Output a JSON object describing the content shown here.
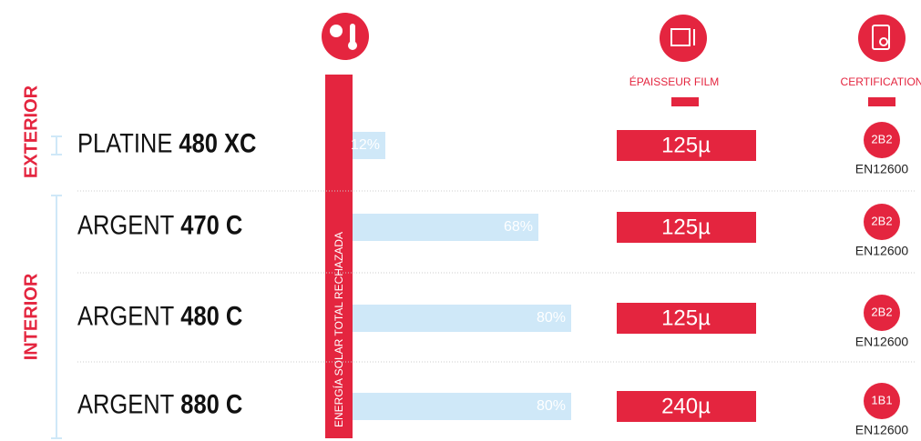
{
  "chart_data": {
    "type": "bar",
    "title": "ENERGÍA SOLAR TOTAL RECHAZADA",
    "groups": [
      {
        "name": "EXTERIOR",
        "rows": [
          0
        ]
      },
      {
        "name": "INTERIOR",
        "rows": [
          1,
          2,
          3
        ]
      }
    ],
    "products": [
      {
        "line": "PLATINE",
        "model": "480 XC"
      },
      {
        "line": "ARGENT",
        "model": "470 C"
      },
      {
        "line": "ARGENT",
        "model": "480 C"
      },
      {
        "line": "ARGENT",
        "model": "880 C"
      }
    ],
    "values": [
      12,
      68,
      80,
      80
    ],
    "value_labels": [
      "12%",
      "68%",
      "80%",
      "80%"
    ],
    "color": "#cfe8f8",
    "xlim": [
      0,
      100
    ],
    "thickness_header": "ÉPAISSEUR FILM",
    "thickness_labels": [
      "125µ",
      "125µ",
      "125µ",
      "240µ"
    ],
    "certification_header": "CERTIFICATION",
    "certifications": [
      "2B2",
      "2B2",
      "2B2",
      "1B1"
    ],
    "standards": [
      "EN12600",
      "EN12600",
      "EN12600",
      "EN12600"
    ]
  }
}
